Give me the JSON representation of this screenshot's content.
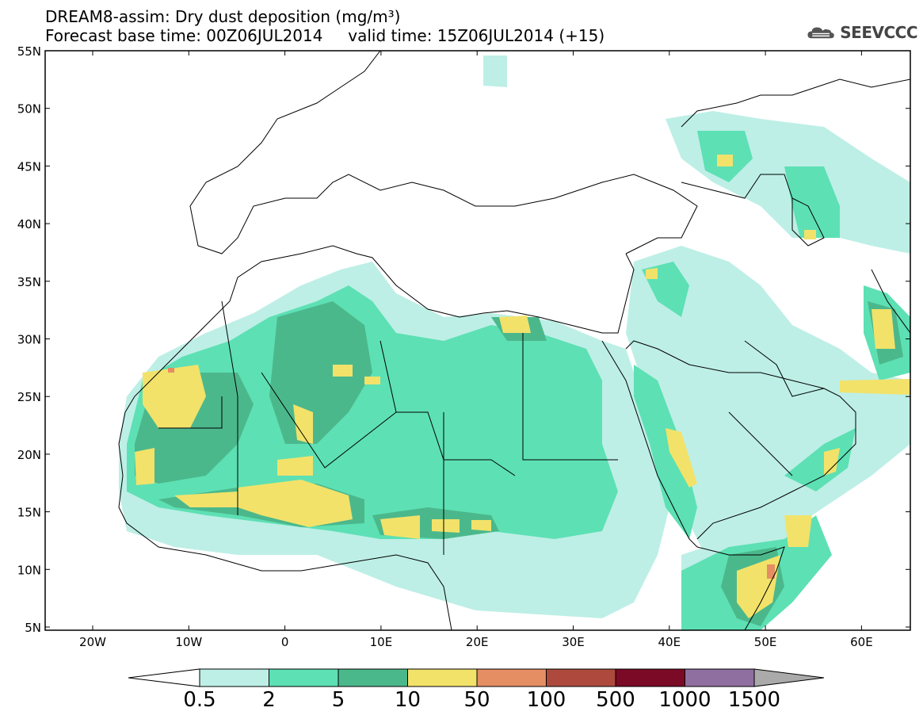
{
  "header": {
    "line1": "DREAM8-assim: Dry dust deposition (mg/m³)",
    "line2": "Forecast base time: 00Z06JUL2014     valid time: 15Z06JUL2014 (+15)"
  },
  "logo": {
    "text": "SEEVCCC",
    "icon": "cloud-icon"
  },
  "map": {
    "lat_labels": [
      "55N",
      "50N",
      "45N",
      "40N",
      "35N",
      "30N",
      "25N",
      "20N",
      "15N",
      "10N",
      "5N"
    ],
    "lon_labels": [
      "20W",
      "10W",
      "0",
      "10E",
      "20E",
      "30E",
      "40E",
      "50E",
      "60E"
    ]
  },
  "colorbar": {
    "labels": [
      "0.5",
      "2",
      "5",
      "10",
      "50",
      "100",
      "500",
      "1000",
      "1500"
    ],
    "colors": [
      "#ffffff",
      "#bdefe6",
      "#5de0b4",
      "#4bb88c",
      "#f2e26a",
      "#e58e63",
      "#ad4a3d",
      "#7a0a25",
      "#8f6fa0",
      "#aaaaaa"
    ]
  }
}
